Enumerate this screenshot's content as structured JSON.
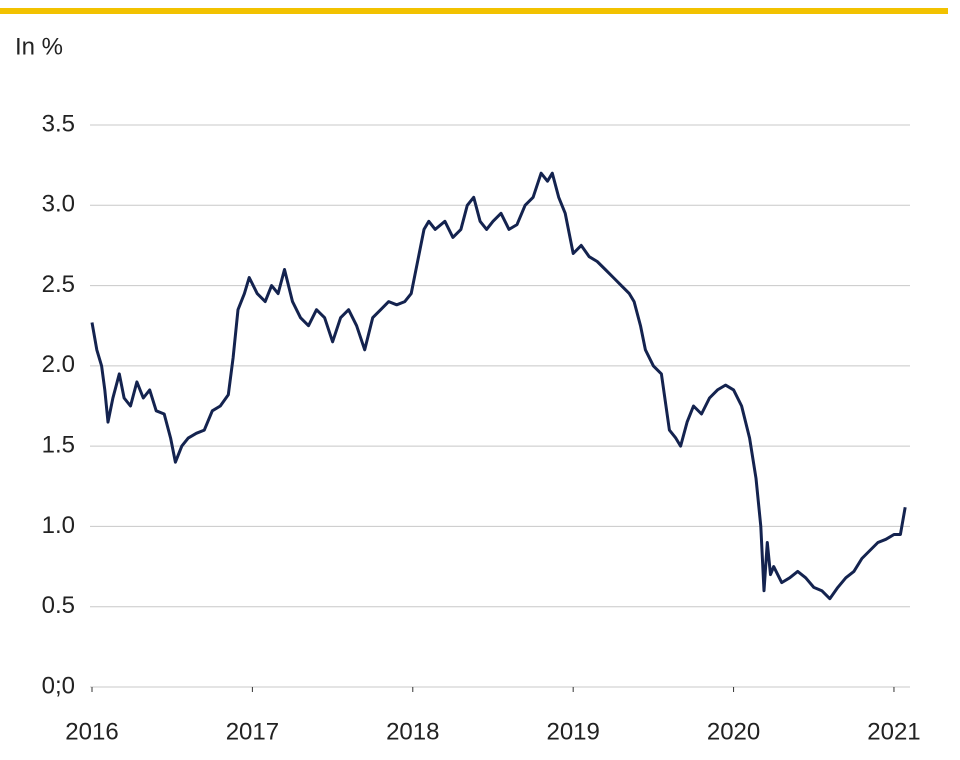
{
  "chart_data": {
    "type": "line",
    "y_label": "In %",
    "x": [
      2016.0,
      2016.03,
      2016.06,
      2016.08,
      2016.1,
      2016.13,
      2016.17,
      2016.2,
      2016.24,
      2016.28,
      2016.32,
      2016.36,
      2016.4,
      2016.45,
      2016.49,
      2016.52,
      2016.56,
      2016.6,
      2016.65,
      2016.7,
      2016.75,
      2016.8,
      2016.85,
      2016.88,
      2016.91,
      2016.95,
      2016.98,
      2017.03,
      2017.08,
      2017.12,
      2017.16,
      2017.2,
      2017.25,
      2017.3,
      2017.35,
      2017.4,
      2017.45,
      2017.5,
      2017.55,
      2017.6,
      2017.65,
      2017.7,
      2017.75,
      2017.8,
      2017.85,
      2017.9,
      2017.95,
      2017.99,
      2018.03,
      2018.07,
      2018.1,
      2018.14,
      2018.2,
      2018.25,
      2018.3,
      2018.34,
      2018.38,
      2018.42,
      2018.46,
      2018.5,
      2018.55,
      2018.6,
      2018.65,
      2018.7,
      2018.75,
      2018.8,
      2018.84,
      2018.87,
      2018.91,
      2018.95,
      2019.0,
      2019.05,
      2019.1,
      2019.15,
      2019.2,
      2019.25,
      2019.3,
      2019.35,
      2019.38,
      2019.42,
      2019.45,
      2019.5,
      2019.55,
      2019.6,
      2019.64,
      2019.67,
      2019.71,
      2019.75,
      2019.8,
      2019.85,
      2019.9,
      2019.95,
      2020.0,
      2020.05,
      2020.1,
      2020.14,
      2020.17,
      2020.19,
      2020.21,
      2020.23,
      2020.25,
      2020.3,
      2020.35,
      2020.4,
      2020.45,
      2020.5,
      2020.55,
      2020.6,
      2020.65,
      2020.7,
      2020.75,
      2020.8,
      2020.85,
      2020.9,
      2020.95,
      2021.0,
      2021.04,
      2021.07
    ],
    "series": [
      {
        "color": "#14234f",
        "values": [
          2.27,
          2.1,
          2.0,
          1.85,
          1.65,
          1.8,
          1.95,
          1.8,
          1.75,
          1.9,
          1.8,
          1.85,
          1.72,
          1.7,
          1.55,
          1.4,
          1.5,
          1.55,
          1.58,
          1.6,
          1.72,
          1.75,
          1.82,
          2.05,
          2.35,
          2.45,
          2.55,
          2.45,
          2.4,
          2.5,
          2.45,
          2.6,
          2.4,
          2.3,
          2.25,
          2.35,
          2.3,
          2.15,
          2.3,
          2.35,
          2.25,
          2.1,
          2.3,
          2.35,
          2.4,
          2.38,
          2.4,
          2.45,
          2.65,
          2.85,
          2.9,
          2.85,
          2.9,
          2.8,
          2.85,
          3.0,
          3.05,
          2.9,
          2.85,
          2.9,
          2.95,
          2.85,
          2.88,
          3.0,
          3.05,
          3.2,
          3.15,
          3.2,
          3.05,
          2.95,
          2.7,
          2.75,
          2.68,
          2.65,
          2.6,
          2.55,
          2.5,
          2.45,
          2.4,
          2.25,
          2.1,
          2.0,
          1.95,
          1.6,
          1.55,
          1.5,
          1.65,
          1.75,
          1.7,
          1.8,
          1.85,
          1.88,
          1.85,
          1.75,
          1.55,
          1.3,
          1.0,
          0.6,
          0.9,
          0.7,
          0.75,
          0.65,
          0.68,
          0.72,
          0.68,
          0.62,
          0.6,
          0.55,
          0.62,
          0.68,
          0.72,
          0.8,
          0.85,
          0.9,
          0.92,
          0.95,
          0.95,
          1.12
        ]
      }
    ],
    "xlim": [
      2016,
      2021.1
    ],
    "xticks": [
      2016,
      2017,
      2018,
      2019,
      2020,
      2021
    ],
    "ylim": [
      0,
      3.5
    ],
    "yticks": [
      {
        "value": 0,
        "label": "0;0"
      },
      0.5,
      {
        "value": 1,
        "label": "1.0"
      },
      1.5,
      {
        "value": 2,
        "label": "2.0"
      },
      2.5,
      {
        "value": 3,
        "label": "3.0"
      },
      3.5
    ],
    "grid": true
  }
}
